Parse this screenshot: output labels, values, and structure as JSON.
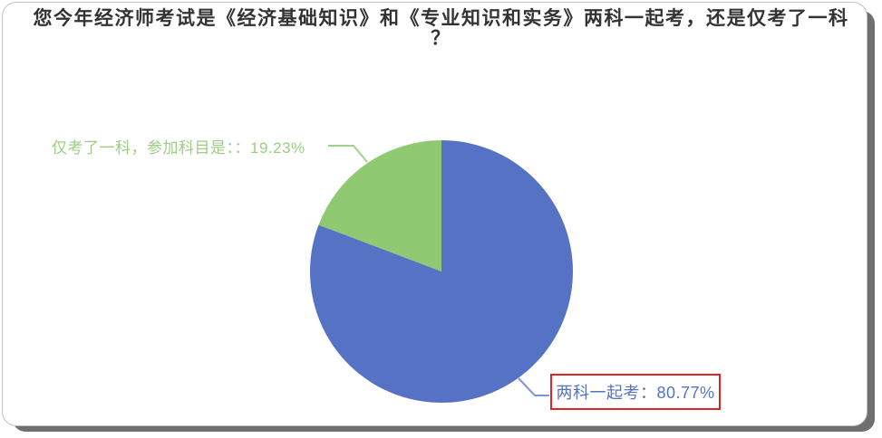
{
  "title": {
    "line1": "您今年经济师考试是《经济基础知识》和《专业知识和实务》两科一起考，还是仅考了一科",
    "line2": "？",
    "full": "您今年经济师考试是《经济基础知识》和《专业知识和实务》两科一起考，还是仅考了一科？"
  },
  "colors": {
    "pie_blue": "#5572C4",
    "pie_green": "#8FCA73",
    "green_label_text": "#9BCE83",
    "blue_label_text": "#5573C0",
    "highlight_box_border": "#E32222",
    "title_text": "#333333",
    "card_border": "#C2C2C2",
    "card_shadow": "#6F6F6F"
  },
  "chart_data": {
    "type": "pie",
    "title": "您今年经济师考试是《经济基础知识》和《专业知识和实务》两科一起考，还是仅考了一科？",
    "legend": "none",
    "labels_position": "outside-with-leader-lines",
    "start_angle_deg": 0,
    "direction": "clockwise",
    "slices": [
      {
        "label": "两科一起考",
        "value": 80.77,
        "unit": "%",
        "color": "#5572C4",
        "display": "两科一起考：80.77%",
        "highlighted_with_red_box": true
      },
      {
        "label": "仅考了一科，参加科目是：",
        "value": 19.23,
        "unit": "%",
        "color": "#8FCA73",
        "display": "仅考了一科，参加科目是：：19.23%",
        "highlighted_with_red_box": false
      }
    ]
  }
}
